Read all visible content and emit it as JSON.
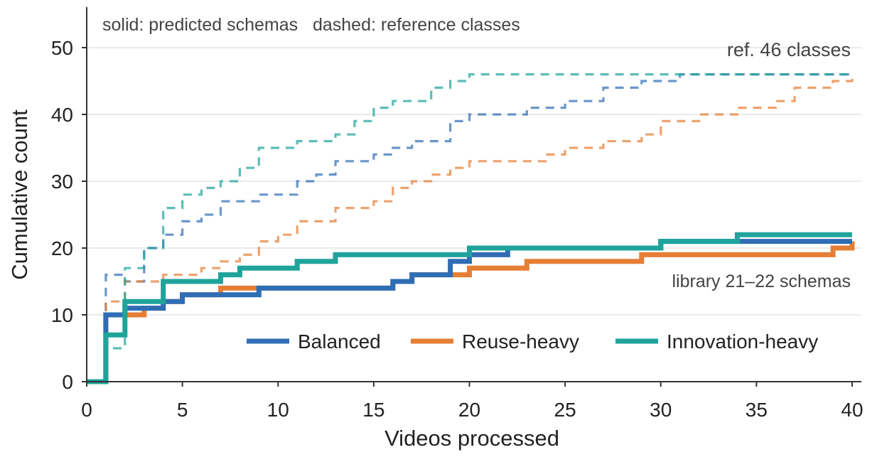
{
  "chart_data": {
    "type": "line",
    "step": "post",
    "xlabel": "Videos processed",
    "ylabel": "Cumulative count",
    "xlim": [
      0,
      40
    ],
    "ylim": [
      0,
      55
    ],
    "xticks": [
      0,
      5,
      10,
      15,
      20,
      25,
      30,
      35,
      40
    ],
    "yticks": [
      0,
      10,
      20,
      30,
      40,
      50
    ],
    "grid": "horizontal",
    "annotations": {
      "line_style_note": "solid: predicted schemas   dashed: reference classes",
      "ref_total": "ref. 46 classes",
      "library_total": "library 21–22 schemas"
    },
    "legend": {
      "placement": "lower-right",
      "entries": [
        "Balanced",
        "Reuse-heavy",
        "Innovation-heavy"
      ]
    },
    "colors": {
      "Balanced": "#2f6db5",
      "Reuse-heavy": "#e67e35",
      "Innovation-heavy": "#1fa39a"
    },
    "series": [
      {
        "name": "Balanced",
        "style": "solid",
        "points": [
          [
            0,
            0
          ],
          [
            1,
            0
          ],
          [
            1,
            10
          ],
          [
            2,
            10
          ],
          [
            2,
            11
          ],
          [
            4,
            11
          ],
          [
            4,
            12
          ],
          [
            5,
            12
          ],
          [
            5,
            13
          ],
          [
            7,
            13
          ],
          [
            9,
            13
          ],
          [
            9,
            14
          ],
          [
            16,
            14
          ],
          [
            16,
            15
          ],
          [
            17,
            15
          ],
          [
            17,
            16
          ],
          [
            19,
            16
          ],
          [
            19,
            18
          ],
          [
            20,
            18
          ],
          [
            20,
            19
          ],
          [
            22,
            19
          ],
          [
            22,
            20
          ],
          [
            30,
            20
          ],
          [
            30,
            21
          ],
          [
            40,
            21
          ]
        ]
      },
      {
        "name": "Reuse-heavy",
        "style": "solid",
        "points": [
          [
            0,
            0
          ],
          [
            1,
            0
          ],
          [
            1,
            10
          ],
          [
            3,
            10
          ],
          [
            3,
            11
          ],
          [
            4,
            11
          ],
          [
            4,
            12
          ],
          [
            5,
            12
          ],
          [
            5,
            13
          ],
          [
            7,
            13
          ],
          [
            7,
            14
          ],
          [
            16,
            14
          ],
          [
            16,
            15
          ],
          [
            17,
            15
          ],
          [
            17,
            16
          ],
          [
            20,
            16
          ],
          [
            20,
            17
          ],
          [
            23,
            17
          ],
          [
            23,
            18
          ],
          [
            29,
            18
          ],
          [
            29,
            19
          ],
          [
            35,
            19
          ],
          [
            39,
            19
          ],
          [
            39,
            20
          ],
          [
            40,
            20
          ],
          [
            40,
            21
          ]
        ]
      },
      {
        "name": "Innovation-heavy",
        "style": "solid",
        "points": [
          [
            0,
            0
          ],
          [
            1,
            0
          ],
          [
            1,
            7
          ],
          [
            2,
            7
          ],
          [
            2,
            12
          ],
          [
            4,
            12
          ],
          [
            4,
            15
          ],
          [
            7,
            15
          ],
          [
            7,
            16
          ],
          [
            8,
            16
          ],
          [
            8,
            17
          ],
          [
            11,
            17
          ],
          [
            11,
            18
          ],
          [
            13,
            18
          ],
          [
            13,
            19
          ],
          [
            20,
            19
          ],
          [
            20,
            20
          ],
          [
            30,
            20
          ],
          [
            30,
            21
          ],
          [
            34,
            21
          ],
          [
            34,
            22
          ],
          [
            40,
            22
          ]
        ]
      },
      {
        "name": "Balanced",
        "style": "dashed",
        "points": [
          [
            0,
            0
          ],
          [
            1,
            0
          ],
          [
            1,
            16
          ],
          [
            2,
            16
          ],
          [
            2,
            15
          ],
          [
            3,
            15
          ],
          [
            3,
            20
          ],
          [
            4,
            20
          ],
          [
            4,
            22
          ],
          [
            5,
            22
          ],
          [
            5,
            24
          ],
          [
            6,
            24
          ],
          [
            6,
            25
          ],
          [
            7,
            25
          ],
          [
            7,
            27
          ],
          [
            9,
            27
          ],
          [
            9,
            28
          ],
          [
            11,
            28
          ],
          [
            11,
            30
          ],
          [
            12,
            30
          ],
          [
            12,
            31
          ],
          [
            13,
            31
          ],
          [
            13,
            33
          ],
          [
            15,
            33
          ],
          [
            15,
            34
          ],
          [
            16,
            34
          ],
          [
            16,
            35
          ],
          [
            17,
            35
          ],
          [
            17,
            36
          ],
          [
            19,
            36
          ],
          [
            19,
            39
          ],
          [
            20,
            39
          ],
          [
            20,
            40
          ],
          [
            23,
            40
          ],
          [
            23,
            41
          ],
          [
            25,
            41
          ],
          [
            25,
            42
          ],
          [
            27,
            42
          ],
          [
            27,
            44
          ],
          [
            29,
            44
          ],
          [
            29,
            45
          ],
          [
            31,
            45
          ],
          [
            31,
            46
          ],
          [
            40,
            46
          ]
        ]
      },
      {
        "name": "Reuse-heavy",
        "style": "dashed",
        "points": [
          [
            0,
            0
          ],
          [
            1,
            0
          ],
          [
            1,
            12
          ],
          [
            2,
            12
          ],
          [
            2,
            15
          ],
          [
            4,
            15
          ],
          [
            4,
            16
          ],
          [
            6,
            16
          ],
          [
            6,
            17
          ],
          [
            7,
            17
          ],
          [
            7,
            18
          ],
          [
            8,
            18
          ],
          [
            8,
            19
          ],
          [
            9,
            19
          ],
          [
            9,
            21
          ],
          [
            10,
            21
          ],
          [
            10,
            22
          ],
          [
            11,
            22
          ],
          [
            11,
            24
          ],
          [
            13,
            24
          ],
          [
            13,
            26
          ],
          [
            15,
            26
          ],
          [
            15,
            27
          ],
          [
            16,
            27
          ],
          [
            16,
            29
          ],
          [
            17,
            29
          ],
          [
            17,
            30
          ],
          [
            18,
            30
          ],
          [
            18,
            31
          ],
          [
            19,
            31
          ],
          [
            19,
            32
          ],
          [
            20,
            32
          ],
          [
            20,
            33
          ],
          [
            24,
            33
          ],
          [
            24,
            34
          ],
          [
            25,
            34
          ],
          [
            25,
            35
          ],
          [
            27,
            35
          ],
          [
            27,
            36
          ],
          [
            29,
            36
          ],
          [
            29,
            37
          ],
          [
            30,
            37
          ],
          [
            30,
            39
          ],
          [
            32,
            39
          ],
          [
            32,
            40
          ],
          [
            34,
            40
          ],
          [
            34,
            41
          ],
          [
            36,
            41
          ],
          [
            36,
            42
          ],
          [
            37,
            42
          ],
          [
            37,
            44
          ],
          [
            39,
            44
          ],
          [
            39,
            45
          ],
          [
            40,
            45
          ],
          [
            40,
            46
          ]
        ]
      },
      {
        "name": "Innovation-heavy",
        "style": "dashed",
        "points": [
          [
            0,
            0
          ],
          [
            1,
            0
          ],
          [
            1,
            5
          ],
          [
            2,
            5
          ],
          [
            2,
            17
          ],
          [
            3,
            17
          ],
          [
            3,
            20
          ],
          [
            4,
            20
          ],
          [
            4,
            26
          ],
          [
            5,
            26
          ],
          [
            5,
            28
          ],
          [
            6,
            28
          ],
          [
            6,
            29
          ],
          [
            7,
            29
          ],
          [
            7,
            30
          ],
          [
            8,
            30
          ],
          [
            8,
            32
          ],
          [
            9,
            32
          ],
          [
            9,
            35
          ],
          [
            10,
            35
          ],
          [
            10,
            35
          ],
          [
            11,
            35
          ],
          [
            11,
            36
          ],
          [
            13,
            36
          ],
          [
            13,
            37
          ],
          [
            14,
            37
          ],
          [
            14,
            39
          ],
          [
            15,
            39
          ],
          [
            15,
            41
          ],
          [
            16,
            41
          ],
          [
            16,
            42
          ],
          [
            18,
            42
          ],
          [
            18,
            44
          ],
          [
            19,
            44
          ],
          [
            19,
            45
          ],
          [
            20,
            45
          ],
          [
            20,
            46
          ],
          [
            40,
            46
          ]
        ]
      }
    ]
  }
}
